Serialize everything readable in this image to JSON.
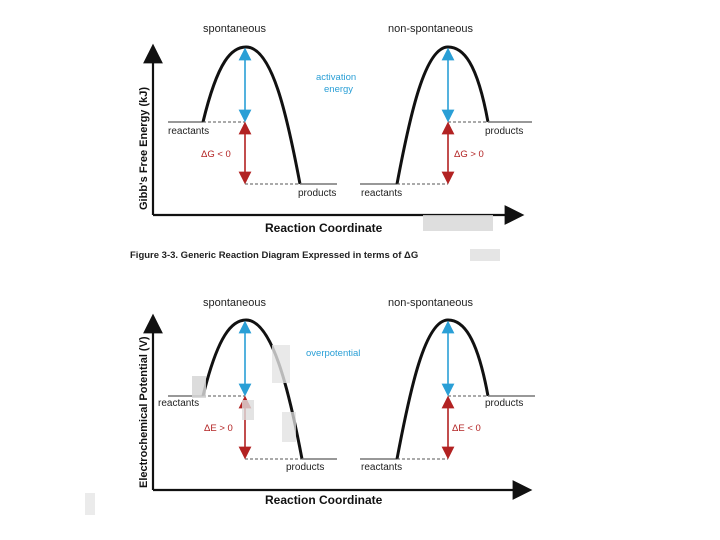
{
  "colors": {
    "accent_blue": "#2a9fd6",
    "accent_red": "#b22222",
    "curve": "#111111",
    "dashed": "#555555"
  },
  "diagram1": {
    "y_axis_label": "Gibb's Free Energy (kJ)",
    "x_axis_label": "Reaction Coordinate",
    "left_header": "spontaneous",
    "right_header": "non-spontaneous",
    "annotation_line1": "activation",
    "annotation_line2": "energy",
    "left_reactants": "reactants",
    "left_products": "products",
    "left_delta": "ΔG < 0",
    "right_reactants": "reactants",
    "right_products": "products",
    "right_delta": "ΔG > 0"
  },
  "caption": "Figure 3-3.  Generic Reaction Diagram Expressed in terms of ΔG",
  "diagram2": {
    "y_axis_label": "Electrochemical Potential (V)",
    "x_axis_label": "Reaction Coordinate",
    "left_header": "spontaneous",
    "right_header": "non-spontaneous",
    "annotation": "overpotential",
    "left_reactants": "reactants",
    "left_products": "products",
    "left_delta": "ΔE > 0",
    "right_reactants": "reactants",
    "right_products": "products",
    "right_delta": "ΔE < 0"
  }
}
